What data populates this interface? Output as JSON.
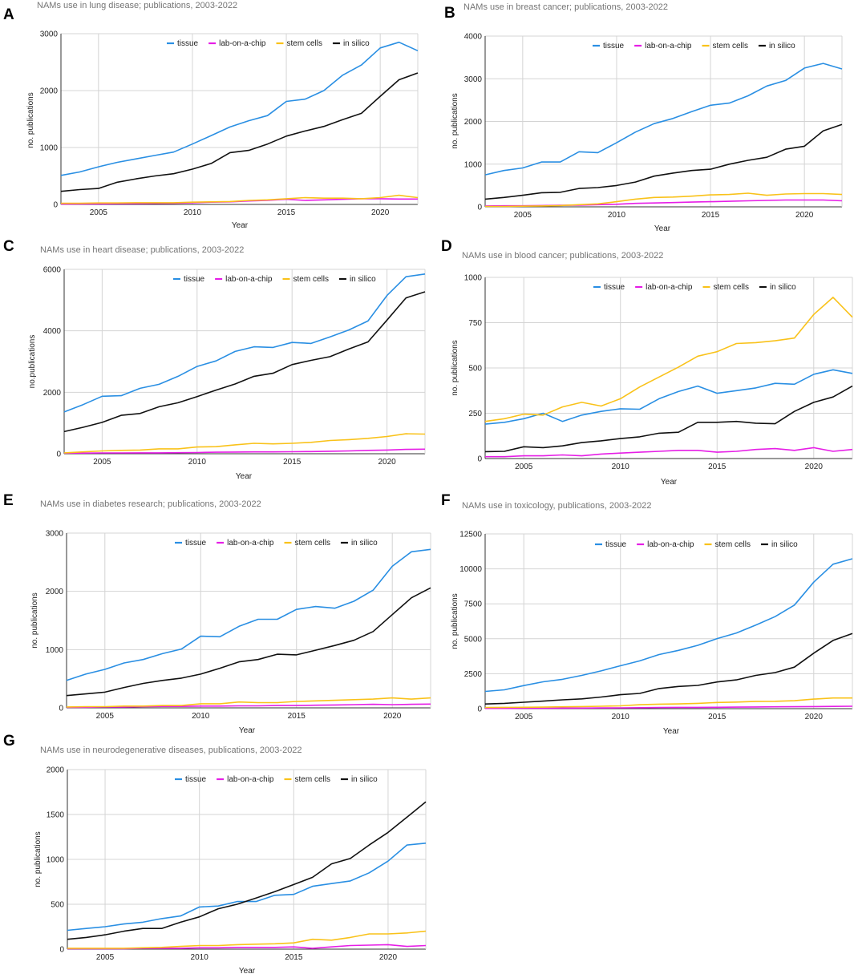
{
  "series_names": [
    "tissue",
    "lab-on-a-chip",
    "stem cells",
    "in silico"
  ],
  "series_colors": {
    "tissue": "#2a8fe3",
    "lab-on-a-chip": "#e61ee6",
    "stem cells": "#f9c21a",
    "in silico": "#111111"
  },
  "x_axis_label": "Year",
  "chart_data": [
    {
      "panel": "A",
      "type": "line",
      "title": "NAMs use in lung disease; publications, 2003-2022",
      "xlabel": "Year",
      "ylabel": "no. publications",
      "xlim": [
        2003,
        2022
      ],
      "ylim": [
        0,
        3000
      ],
      "x_ticks": [
        2005,
        2010,
        2015,
        2020
      ],
      "y_ticks": [
        0,
        1000,
        2000,
        3000
      ],
      "x": [
        2003,
        2004,
        2005,
        2006,
        2007,
        2008,
        2009,
        2010,
        2011,
        2012,
        2013,
        2014,
        2015,
        2016,
        2017,
        2018,
        2019,
        2020,
        2021,
        2022
      ],
      "series": [
        {
          "name": "tissue",
          "values": [
            510,
            570,
            660,
            740,
            800,
            860,
            920,
            1060,
            1210,
            1360,
            1470,
            1560,
            1810,
            1850,
            2000,
            2270,
            2450,
            2750,
            2850,
            2700
          ]
        },
        {
          "name": "lab-on-a-chip",
          "values": [
            5,
            8,
            10,
            12,
            15,
            18,
            20,
            30,
            40,
            45,
            60,
            70,
            90,
            70,
            80,
            90,
            100,
            100,
            95,
            95
          ]
        },
        {
          "name": "stem cells",
          "values": [
            20,
            20,
            25,
            25,
            30,
            30,
            30,
            40,
            45,
            50,
            70,
            80,
            100,
            120,
            110,
            110,
            100,
            120,
            160,
            120
          ]
        },
        {
          "name": "in silico",
          "values": [
            230,
            260,
            280,
            390,
            450,
            500,
            540,
            620,
            720,
            910,
            950,
            1060,
            1200,
            1290,
            1370,
            1490,
            1600,
            1900,
            2190,
            2310
          ]
        }
      ]
    },
    {
      "panel": "B",
      "type": "line",
      "title": "NAMs use in breast cancer; publications, 2003-2022",
      "xlabel": "Year",
      "ylabel": "no. publications",
      "xlim": [
        2003,
        2022
      ],
      "ylim": [
        0,
        4000
      ],
      "x_ticks": [
        2005,
        2010,
        2015,
        2020
      ],
      "y_ticks": [
        0,
        1000,
        2000,
        3000,
        4000
      ],
      "x": [
        2003,
        2004,
        2005,
        2006,
        2007,
        2008,
        2009,
        2010,
        2011,
        2012,
        2013,
        2014,
        2015,
        2016,
        2017,
        2018,
        2019,
        2020,
        2021,
        2022
      ],
      "series": [
        {
          "name": "tissue",
          "values": [
            750,
            850,
            910,
            1050,
            1050,
            1290,
            1270,
            1500,
            1750,
            1950,
            2070,
            2230,
            2380,
            2430,
            2600,
            2830,
            2960,
            3250,
            3360,
            3230
          ]
        },
        {
          "name": "lab-on-a-chip",
          "values": [
            20,
            25,
            25,
            30,
            35,
            40,
            50,
            60,
            80,
            90,
            100,
            110,
            120,
            130,
            140,
            150,
            160,
            160,
            160,
            140
          ]
        },
        {
          "name": "stem cells",
          "values": [
            10,
            10,
            15,
            20,
            30,
            50,
            70,
            120,
            180,
            220,
            230,
            250,
            280,
            290,
            320,
            270,
            300,
            310,
            310,
            290
          ]
        },
        {
          "name": "in silico",
          "values": [
            180,
            220,
            270,
            330,
            340,
            430,
            450,
            500,
            580,
            720,
            790,
            850,
            880,
            1000,
            1090,
            1160,
            1350,
            1420,
            1780,
            1930
          ]
        }
      ]
    },
    {
      "panel": "C",
      "type": "line",
      "title": "NAMs use in heart disease; publications, 2003-2022",
      "xlabel": "Year",
      "ylabel": "no.publications",
      "xlim": [
        2003,
        2022
      ],
      "ylim": [
        0,
        6000
      ],
      "x_ticks": [
        2005,
        2010,
        2015,
        2020
      ],
      "y_ticks": [
        0,
        2000,
        4000,
        6000
      ],
      "x": [
        2003,
        2004,
        2005,
        2006,
        2007,
        2008,
        2009,
        2010,
        2011,
        2012,
        2013,
        2014,
        2015,
        2016,
        2017,
        2018,
        2019,
        2020,
        2021,
        2022
      ],
      "series": [
        {
          "name": "tissue",
          "values": [
            1360,
            1600,
            1870,
            1890,
            2130,
            2260,
            2520,
            2840,
            3020,
            3330,
            3480,
            3460,
            3620,
            3590,
            3800,
            4030,
            4320,
            5150,
            5760,
            5850
          ]
        },
        {
          "name": "lab-on-a-chip",
          "values": [
            20,
            20,
            25,
            25,
            30,
            30,
            35,
            40,
            50,
            55,
            60,
            60,
            65,
            70,
            80,
            90,
            110,
            120,
            140,
            150
          ]
        },
        {
          "name": "stem cells",
          "values": [
            30,
            60,
            90,
            110,
            120,
            160,
            160,
            220,
            230,
            290,
            340,
            320,
            340,
            370,
            430,
            460,
            500,
            560,
            650,
            640
          ]
        },
        {
          "name": "in silico",
          "values": [
            720,
            860,
            1020,
            1250,
            1310,
            1530,
            1660,
            1860,
            2070,
            2270,
            2520,
            2620,
            2900,
            3040,
            3160,
            3410,
            3640,
            4350,
            5070,
            5270
          ]
        }
      ]
    },
    {
      "panel": "D",
      "type": "line",
      "title": "NAMs use in blood cancer; publications, 2003-2022",
      "xlabel": "Year",
      "ylabel": "no. publications",
      "xlim": [
        2003,
        2022
      ],
      "ylim": [
        0,
        1000
      ],
      "x_ticks": [
        2005,
        2010,
        2015,
        2020
      ],
      "y_ticks": [
        0,
        250,
        500,
        750,
        1000
      ],
      "x": [
        2003,
        2004,
        2005,
        2006,
        2007,
        2008,
        2009,
        2010,
        2011,
        2012,
        2013,
        2014,
        2015,
        2016,
        2017,
        2018,
        2019,
        2020,
        2021,
        2022
      ],
      "series": [
        {
          "name": "tissue",
          "values": [
            190,
            200,
            220,
            250,
            205,
            240,
            260,
            275,
            272,
            330,
            370,
            400,
            360,
            375,
            390,
            415,
            410,
            465,
            490,
            470
          ]
        },
        {
          "name": "lab-on-a-chip",
          "values": [
            10,
            10,
            15,
            15,
            20,
            15,
            25,
            30,
            35,
            40,
            45,
            45,
            35,
            40,
            50,
            55,
            45,
            60,
            40,
            50
          ]
        },
        {
          "name": "stem cells",
          "values": [
            205,
            220,
            245,
            240,
            285,
            310,
            290,
            330,
            395,
            450,
            505,
            565,
            590,
            635,
            640,
            650,
            665,
            795,
            890,
            780
          ]
        },
        {
          "name": "in silico",
          "values": [
            38,
            40,
            65,
            60,
            70,
            88,
            98,
            110,
            120,
            140,
            145,
            200,
            200,
            205,
            195,
            192,
            260,
            310,
            340,
            400
          ]
        }
      ]
    },
    {
      "panel": "E",
      "type": "line",
      "title": "NAMs use in diabetes research; publications, 2003-2022",
      "xlabel": "Year",
      "ylabel": "no. publications",
      "xlim": [
        2003,
        2022
      ],
      "ylim": [
        0,
        3000
      ],
      "x_ticks": [
        2005,
        2010,
        2015,
        2020
      ],
      "y_ticks": [
        0,
        1000,
        2000,
        3000
      ],
      "x": [
        2003,
        2004,
        2005,
        2006,
        2007,
        2008,
        2009,
        2010,
        2011,
        2012,
        2013,
        2014,
        2015,
        2016,
        2017,
        2018,
        2019,
        2020,
        2021,
        2022
      ],
      "series": [
        {
          "name": "tissue",
          "values": [
            470,
            580,
            660,
            770,
            830,
            930,
            1010,
            1230,
            1220,
            1400,
            1520,
            1520,
            1690,
            1740,
            1710,
            1830,
            2020,
            2430,
            2680,
            2720
          ]
        },
        {
          "name": "lab-on-a-chip",
          "values": [
            10,
            10,
            15,
            15,
            20,
            25,
            25,
            30,
            30,
            35,
            35,
            40,
            40,
            45,
            50,
            55,
            60,
            55,
            60,
            65
          ]
        },
        {
          "name": "stem cells",
          "values": [
            15,
            20,
            20,
            30,
            30,
            40,
            40,
            70,
            70,
            100,
            90,
            90,
            110,
            120,
            130,
            140,
            150,
            170,
            150,
            170
          ]
        },
        {
          "name": "in silico",
          "values": [
            210,
            240,
            270,
            350,
            420,
            470,
            510,
            580,
            680,
            790,
            830,
            920,
            910,
            990,
            1070,
            1160,
            1310,
            1600,
            1890,
            2060
          ]
        }
      ]
    },
    {
      "panel": "F",
      "type": "line",
      "title": "NAMs use in toxicology, publications, 2003-2022",
      "xlabel": "Year",
      "ylabel": "no. publications",
      "xlim": [
        2003,
        2022
      ],
      "ylim": [
        0,
        12500
      ],
      "x_ticks": [
        2005,
        2010,
        2015,
        2020
      ],
      "y_ticks": [
        0,
        2500,
        5000,
        7500,
        10000,
        12500
      ],
      "x": [
        2003,
        2004,
        2005,
        2006,
        2007,
        2008,
        2009,
        2010,
        2011,
        2012,
        2013,
        2014,
        2015,
        2016,
        2017,
        2018,
        2019,
        2020,
        2021,
        2022
      ],
      "series": [
        {
          "name": "tissue",
          "values": [
            1230,
            1350,
            1650,
            1920,
            2100,
            2380,
            2700,
            3070,
            3420,
            3870,
            4170,
            4530,
            5010,
            5410,
            5980,
            6580,
            7410,
            9050,
            10330,
            10720
          ]
        },
        {
          "name": "lab-on-a-chip",
          "values": [
            20,
            20,
            30,
            30,
            40,
            40,
            50,
            60,
            70,
            80,
            90,
            90,
            100,
            110,
            120,
            130,
            140,
            150,
            160,
            170
          ]
        },
        {
          "name": "stem cells",
          "values": [
            80,
            90,
            100,
            110,
            130,
            150,
            170,
            200,
            280,
            320,
            340,
            380,
            440,
            470,
            520,
            530,
            570,
            680,
            760,
            760
          ]
        },
        {
          "name": "in silico",
          "values": [
            330,
            380,
            460,
            540,
            630,
            700,
            830,
            1000,
            1090,
            1440,
            1590,
            1660,
            1910,
            2060,
            2380,
            2580,
            2970,
            3970,
            4880,
            5370
          ]
        }
      ]
    },
    {
      "panel": "G",
      "type": "line",
      "title": "NAMs use in neurodegenerative diseases, publications, 2003-2022",
      "xlabel": "Year",
      "ylabel": "no. publications",
      "xlim": [
        2003,
        2022
      ],
      "ylim": [
        0,
        2000
      ],
      "x_ticks": [
        2005,
        2010,
        2015,
        2020
      ],
      "y_ticks": [
        0,
        500,
        1000,
        1500,
        2000
      ],
      "x": [
        2003,
        2004,
        2005,
        2006,
        2007,
        2008,
        2009,
        2010,
        2011,
        2012,
        2013,
        2014,
        2015,
        2016,
        2017,
        2018,
        2019,
        2020,
        2021,
        2022
      ],
      "series": [
        {
          "name": "tissue",
          "values": [
            210,
            230,
            250,
            280,
            300,
            340,
            370,
            470,
            480,
            530,
            530,
            600,
            610,
            700,
            730,
            760,
            850,
            980,
            1160,
            1180
          ]
        },
        {
          "name": "lab-on-a-chip",
          "values": [
            5,
            5,
            5,
            5,
            10,
            10,
            10,
            15,
            15,
            20,
            20,
            20,
            25,
            10,
            25,
            40,
            45,
            50,
            30,
            40
          ]
        },
        {
          "name": "stem cells",
          "values": [
            10,
            10,
            10,
            10,
            15,
            20,
            30,
            40,
            40,
            50,
            55,
            60,
            70,
            110,
            100,
            130,
            170,
            170,
            180,
            200
          ]
        },
        {
          "name": "in silico",
          "values": [
            110,
            130,
            160,
            200,
            230,
            230,
            300,
            360,
            450,
            500,
            570,
            640,
            720,
            800,
            950,
            1010,
            1160,
            1300,
            1470,
            1640
          ]
        }
      ]
    }
  ]
}
